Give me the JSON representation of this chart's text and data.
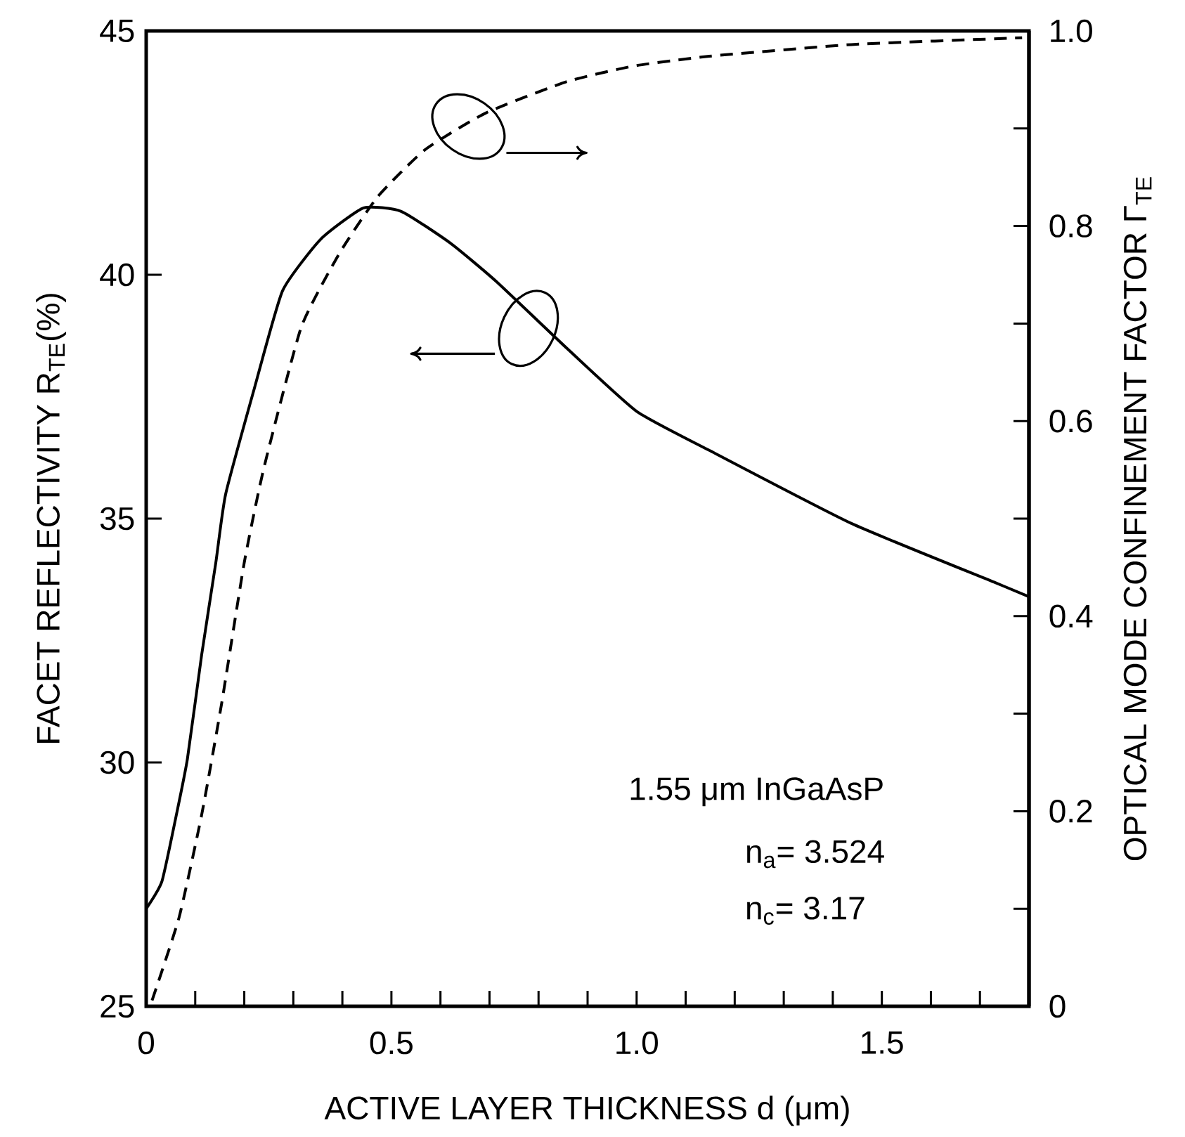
{
  "chart_data": {
    "type": "line",
    "xlabel": "ACTIVE LAYER THICKNESS  d (μm)",
    "ylabel": "FACET REFLECTIVITY  R$_{TE}$(%)",
    "y2label": "OPTICAL MODE CONFINEMENT FACTOR  Γ$_{TE}$",
    "xlim": [
      0,
      1.8
    ],
    "xticks": [
      0,
      {
        "value": 0.1,
        "label": null
      },
      {
        "value": 0.2,
        "label": null
      },
      {
        "value": 0.3,
        "label": null
      },
      {
        "value": 0.4,
        "label": null
      },
      0.5,
      {
        "value": 0.6,
        "label": null
      },
      {
        "value": 0.7,
        "label": null
      },
      {
        "value": 0.8,
        "label": null
      },
      {
        "value": 0.9,
        "label": null
      },
      {
        "value": 1,
        "label": "1.0"
      },
      {
        "value": 1.1,
        "label": null
      },
      {
        "value": 1.2,
        "label": null
      },
      {
        "value": 1.3,
        "label": null
      },
      {
        "value": 1.4,
        "label": null
      },
      1.5,
      {
        "value": 1.6,
        "label": null
      },
      {
        "value": 1.7,
        "label": null
      }
    ],
    "ylim": [
      25,
      45
    ],
    "yticks": [
      25,
      30,
      35,
      40,
      45
    ],
    "y2lim": [
      0,
      1
    ],
    "y2ticks": [
      0,
      {
        "value": 0.1,
        "label": null
      },
      0.2,
      {
        "value": 0.3,
        "label": null
      },
      0.4,
      {
        "value": 0.5,
        "label": null
      },
      0.6,
      {
        "value": 0.7,
        "label": null
      },
      0.8,
      {
        "value": 0.9,
        "label": null
      },
      {
        "value": 1,
        "label": "1.0"
      }
    ],
    "series": [
      {
        "color": "#000000",
        "line_style": "solid",
        "x": [
          0,
          0.032,
          0.061,
          0.084,
          0.113,
          0.142,
          0.162,
          0.22,
          0.278,
          0.356,
          0.443,
          0.52,
          0.62,
          0.713,
          0.858,
          1.0,
          1.148,
          1.438,
          1.728,
          1.8
        ],
        "values": [
          27.0,
          27.56,
          28.9,
          30.07,
          32.2,
          34.1,
          35.5,
          37.65,
          39.67,
          40.73,
          41.37,
          41.3,
          40.65,
          39.87,
          38.49,
          37.2,
          36.4,
          34.9,
          33.7,
          33.4
        ]
      },
      {
        "color": "#000000",
        "line_style": "dashed",
        "axis": "y2",
        "x": [
          0.012,
          0.067,
          0.113,
          0.154,
          0.2,
          0.24,
          0.316,
          0.394,
          0.472,
          0.568,
          0.693,
          0.858,
          0.994,
          1.148,
          1.438,
          1.786
        ],
        "values": [
          0.006,
          0.091,
          0.196,
          0.311,
          0.455,
          0.552,
          0.696,
          0.772,
          0.83,
          0.878,
          0.916,
          0.948,
          0.964,
          0.974,
          0.986,
          0.993
        ]
      }
    ],
    "annotations": [
      "1.55 μm InGaAsP",
      "n$_{a}$= 3.524",
      "n$_{c}$= 3.17"
    ]
  }
}
